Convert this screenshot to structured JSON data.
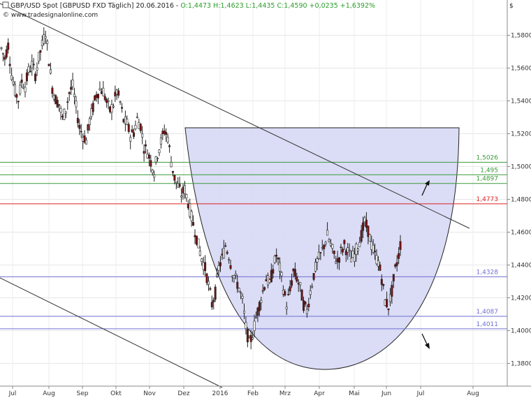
{
  "header": {
    "instrument": "GBP/USD Spot [GBPUSD FXD  Täglich] 20.06.2016",
    "ohlc_prefix": " - ",
    "ohlc": "O:1,4473 H:1,4623 L:1,4435 C:1,4590 +0,0235 +1,6392%",
    "watermark": "© www.tradesignalonline.com",
    "currency": "$"
  },
  "chart_data": {
    "type": "candlestick",
    "instrument": "GBP/USD Spot",
    "ylim": [
      1.365,
      1.6
    ],
    "y_ticks": [
      "1,5800",
      "1,5600",
      "1,5400",
      "1,5200",
      "1,5000",
      "1,4800",
      "1,4600",
      "1,4400",
      "1,4200",
      "1,4000",
      "1,3800"
    ],
    "y_tick_values": [
      1.58,
      1.56,
      1.54,
      1.52,
      1.5,
      1.48,
      1.46,
      1.44,
      1.42,
      1.4,
      1.38
    ],
    "x_tick_labels": [
      "Jul",
      "Aug",
      "Sep",
      "Okt",
      "Nov",
      "Dez",
      "2016",
      "Feb",
      "Mrz",
      "Apr",
      "Mai",
      "Jun",
      "Jul",
      "Aug"
    ],
    "horizontal_levels": [
      {
        "value": 1.5026,
        "label": "1,5026",
        "color": "#3a9a3a"
      },
      {
        "value": 1.495,
        "label": "1,495",
        "color": "#3a9a3a"
      },
      {
        "value": 1.4897,
        "label": "1,4897",
        "color": "#3a9a3a"
      },
      {
        "value": 1.4773,
        "label": "1,4773",
        "color": "#e02020"
      },
      {
        "value": 1.4328,
        "label": "1,4328",
        "color": "#6f6fd0"
      },
      {
        "value": 1.4087,
        "label": "1,4087",
        "color": "#6f6fd0"
      },
      {
        "value": 1.4011,
        "label": "1,4011",
        "color": "#6f6fd0"
      }
    ],
    "bowl_fill": "#d7d8f5",
    "close_path": [
      [
        0,
        1.572
      ],
      [
        2,
        1.566
      ],
      [
        4,
        1.574
      ],
      [
        6,
        1.556
      ],
      [
        8,
        1.546
      ],
      [
        10,
        1.541
      ],
      [
        12,
        1.552
      ],
      [
        14,
        1.549
      ],
      [
        16,
        1.558
      ],
      [
        18,
        1.562
      ],
      [
        20,
        1.556
      ],
      [
        22,
        1.566
      ],
      [
        24,
        1.574
      ],
      [
        26,
        1.582
      ],
      [
        28,
        1.565
      ],
      [
        30,
        1.548
      ],
      [
        32,
        1.541
      ],
      [
        34,
        1.538
      ],
      [
        36,
        1.529
      ],
      [
        38,
        1.535
      ],
      [
        40,
        1.545
      ],
      [
        42,
        1.549
      ],
      [
        44,
        1.536
      ],
      [
        46,
        1.524
      ],
      [
        48,
        1.519
      ],
      [
        50,
        1.516
      ],
      [
        52,
        1.528
      ],
      [
        54,
        1.536
      ],
      [
        56,
        1.544
      ],
      [
        58,
        1.547
      ],
      [
        60,
        1.546
      ],
      [
        62,
        1.539
      ],
      [
        64,
        1.534
      ],
      [
        66,
        1.538
      ],
      [
        68,
        1.546
      ],
      [
        70,
        1.539
      ],
      [
        72,
        1.528
      ],
      [
        74,
        1.526
      ],
      [
        76,
        1.519
      ],
      [
        78,
        1.521
      ],
      [
        80,
        1.529
      ],
      [
        82,
        1.525
      ],
      [
        84,
        1.512
      ],
      [
        86,
        1.509
      ],
      [
        88,
        1.503
      ],
      [
        90,
        1.497
      ],
      [
        92,
        1.508
      ],
      [
        94,
        1.515
      ],
      [
        96,
        1.522
      ],
      [
        98,
        1.518
      ],
      [
        100,
        1.503
      ],
      [
        102,
        1.493
      ],
      [
        104,
        1.488
      ],
      [
        106,
        1.483
      ],
      [
        108,
        1.486
      ],
      [
        110,
        1.478
      ],
      [
        112,
        1.469
      ],
      [
        114,
        1.461
      ],
      [
        116,
        1.452
      ],
      [
        118,
        1.444
      ],
      [
        120,
        1.438
      ],
      [
        122,
        1.428
      ],
      [
        124,
        1.416
      ],
      [
        126,
        1.423
      ],
      [
        128,
        1.438
      ],
      [
        130,
        1.444
      ],
      [
        132,
        1.452
      ],
      [
        134,
        1.446
      ],
      [
        136,
        1.436
      ],
      [
        138,
        1.431
      ],
      [
        140,
        1.426
      ],
      [
        142,
        1.418
      ],
      [
        144,
        1.402
      ],
      [
        146,
        1.392
      ],
      [
        148,
        1.398
      ],
      [
        150,
        1.408
      ],
      [
        152,
        1.416
      ],
      [
        154,
        1.424
      ],
      [
        156,
        1.432
      ],
      [
        158,
        1.428
      ],
      [
        160,
        1.438
      ],
      [
        162,
        1.446
      ],
      [
        164,
        1.438
      ],
      [
        166,
        1.426
      ],
      [
        168,
        1.416
      ],
      [
        170,
        1.424
      ],
      [
        172,
        1.436
      ],
      [
        174,
        1.432
      ],
      [
        176,
        1.426
      ],
      [
        178,
        1.416
      ],
      [
        180,
        1.412
      ],
      [
        182,
        1.424
      ],
      [
        184,
        1.434
      ],
      [
        186,
        1.442
      ],
      [
        188,
        1.446
      ],
      [
        190,
        1.452
      ],
      [
        192,
        1.458
      ],
      [
        194,
        1.452
      ],
      [
        196,
        1.446
      ],
      [
        198,
        1.442
      ],
      [
        200,
        1.448
      ],
      [
        202,
        1.452
      ],
      [
        204,
        1.448
      ],
      [
        206,
        1.444
      ],
      [
        208,
        1.446
      ],
      [
        210,
        1.452
      ],
      [
        212,
        1.458
      ],
      [
        214,
        1.466
      ],
      [
        216,
        1.461
      ],
      [
        218,
        1.452
      ],
      [
        220,
        1.446
      ],
      [
        222,
        1.442
      ],
      [
        224,
        1.432
      ],
      [
        226,
        1.418
      ],
      [
        228,
        1.415
      ],
      [
        230,
        1.424
      ],
      [
        232,
        1.437
      ],
      [
        234,
        1.446
      ],
      [
        236,
        1.459
      ]
    ]
  }
}
